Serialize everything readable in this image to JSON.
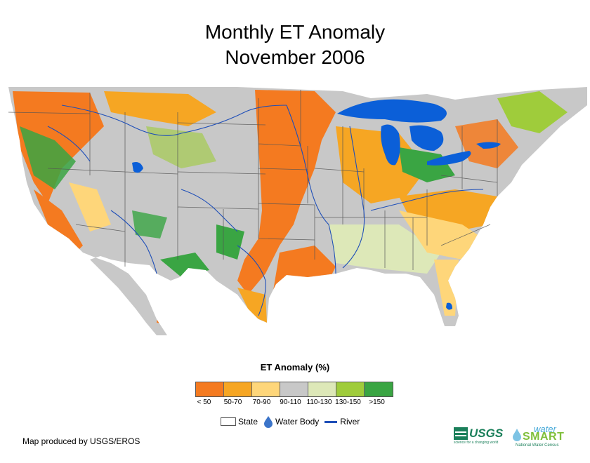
{
  "title": {
    "line1": "Monthly ET Anomaly",
    "line2": "November 2006"
  },
  "legend": {
    "title": "ET Anomaly (%)",
    "classes": [
      {
        "label": "< 50",
        "color": "#f47a20"
      },
      {
        "label": "50-70",
        "color": "#f6a623"
      },
      {
        "label": "70-90",
        "color": "#fed67a"
      },
      {
        "label": "90-110",
        "color": "#c8c8c8"
      },
      {
        "label": "110-130",
        "color": "#dde8b8"
      },
      {
        "label": "130-150",
        "color": "#9fcc3b"
      },
      {
        "label": ">150",
        "color": "#3aa543"
      }
    ],
    "state_label": "State",
    "water_label": "Water Body",
    "river_label": "River"
  },
  "colors": {
    "water": "#0b5fd8",
    "river": "#1f4fb8",
    "state_line": "#555555"
  },
  "credit": "Map produced by USGS/EROS",
  "logos": {
    "usgs": "USGS",
    "usgs_tagline": "science for a changing world",
    "watersmart_top": "water",
    "watersmart_main": "SMART",
    "watersmart_sub": "National Water Census"
  }
}
